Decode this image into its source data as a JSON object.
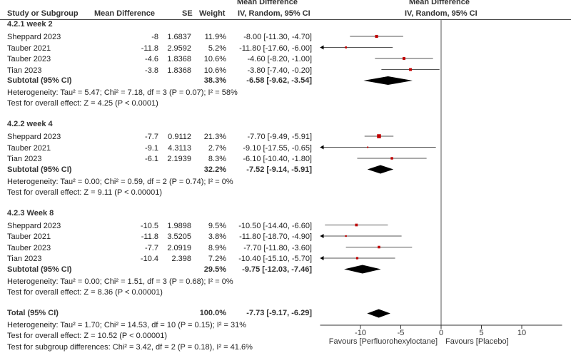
{
  "columns": {
    "study": "Study or Subgroup",
    "md": "Mean Difference",
    "se": "SE",
    "weight": "Weight",
    "ci_top": "Mean Difference",
    "ci_bottom": "IV, Random, 95% CI",
    "plot_top": "Mean Difference",
    "plot_bottom": "IV, Random, 95% CI"
  },
  "colors": {
    "marker": "#c00000",
    "diamond": "#000000",
    "ci_line": "#555555"
  },
  "subgroups": [
    {
      "label": "4.2.1 week 2",
      "studies": [
        {
          "name": "Sheppard 2023",
          "md": "-8",
          "se": "1.6837",
          "weight": "11.9%",
          "ci": "-8.00 [-11.30, -4.70]",
          "est": -8.0,
          "lo": -11.3,
          "hi": -4.7,
          "w": 11.9
        },
        {
          "name": "Tauber 2021",
          "md": "-11.8",
          "se": "2.9592",
          "weight": "5.2%",
          "ci": "-11.80 [-17.60, -6.00]",
          "est": -11.8,
          "lo": -17.6,
          "hi": -6.0,
          "w": 5.2
        },
        {
          "name": "Tauber 2023",
          "md": "-4.6",
          "se": "1.8368",
          "weight": "10.6%",
          "ci": "-4.60 [-8.20, -1.00]",
          "est": -4.6,
          "lo": -8.2,
          "hi": -1.0,
          "w": 10.6
        },
        {
          "name": "Tian 2023",
          "md": "-3.8",
          "se": "1.8368",
          "weight": "10.6%",
          "ci": "-3.80 [-7.40, -0.20]",
          "est": -3.8,
          "lo": -7.4,
          "hi": -0.2,
          "w": 10.6
        }
      ],
      "subtotal": {
        "label": "Subtotal (95% CI)",
        "weight": "38.3%",
        "ci": "-6.58 [-9.62, -3.54]",
        "est": -6.58,
        "lo": -9.62,
        "hi": -3.54
      },
      "heterogeneity": "Heterogeneity: Tau² = 5.47; Chi² = 7.18, df = 3 (P = 0.07); I² = 58%",
      "overall": "Test for overall effect: Z = 4.25 (P < 0.0001)"
    },
    {
      "label": "4.2.2 week 4",
      "studies": [
        {
          "name": "Sheppard 2023",
          "md": "-7.7",
          "se": "0.9112",
          "weight": "21.3%",
          "ci": "-7.70 [-9.49, -5.91]",
          "est": -7.7,
          "lo": -9.49,
          "hi": -5.91,
          "w": 21.3
        },
        {
          "name": "Tauber 2021",
          "md": "-9.1",
          "se": "4.3113",
          "weight": "2.7%",
          "ci": "-9.10 [-17.55, -0.65]",
          "est": -9.1,
          "lo": -17.55,
          "hi": -0.65,
          "w": 2.7
        },
        {
          "name": "Tian 2023",
          "md": "-6.1",
          "se": "2.1939",
          "weight": "8.3%",
          "ci": "-6.10 [-10.40, -1.80]",
          "est": -6.1,
          "lo": -10.4,
          "hi": -1.8,
          "w": 8.3
        }
      ],
      "subtotal": {
        "label": "Subtotal (95% CI)",
        "weight": "32.2%",
        "ci": "-7.52 [-9.14, -5.91]",
        "est": -7.52,
        "lo": -9.14,
        "hi": -5.91
      },
      "heterogeneity": "Heterogeneity: Tau² = 0.00; Chi² = 0.59, df = 2 (P = 0.74); I² = 0%",
      "overall": "Test for overall effect: Z = 9.11 (P < 0.00001)"
    },
    {
      "label": "4.2.3 Week 8",
      "studies": [
        {
          "name": "Sheppard 2023",
          "md": "-10.5",
          "se": "1.9898",
          "weight": "9.5%",
          "ci": "-10.50 [-14.40, -6.60]",
          "est": -10.5,
          "lo": -14.4,
          "hi": -6.6,
          "w": 9.5
        },
        {
          "name": "Tauber 2021",
          "md": "-11.8",
          "se": "3.5205",
          "weight": "3.8%",
          "ci": "-11.80 [-18.70, -4.90]",
          "est": -11.8,
          "lo": -18.7,
          "hi": -4.9,
          "w": 3.8
        },
        {
          "name": "Tauber 2023",
          "md": "-7.7",
          "se": "2.0919",
          "weight": "8.9%",
          "ci": "-7.70 [-11.80, -3.60]",
          "est": -7.7,
          "lo": -11.8,
          "hi": -3.6,
          "w": 8.9
        },
        {
          "name": "Tian 2023",
          "md": "-10.4",
          "se": "2.398",
          "weight": "7.2%",
          "ci": "-10.40 [-15.10, -5.70]",
          "est": -10.4,
          "lo": -15.1,
          "hi": -5.7,
          "w": 7.2
        }
      ],
      "subtotal": {
        "label": "Subtotal (95% CI)",
        "weight": "29.5%",
        "ci": "-9.75 [-12.03, -7.46]",
        "est": -9.75,
        "lo": -12.03,
        "hi": -7.46
      },
      "heterogeneity": "Heterogeneity: Tau² = 0.00; Chi² = 1.51, df = 3 (P = 0.68); I² = 0%",
      "overall": "Test for overall effect: Z = 8.36 (P < 0.00001)"
    }
  ],
  "total": {
    "label": "Total (95% CI)",
    "weight": "100.0%",
    "ci": "-7.73 [-9.17, -6.29]",
    "est": -7.73,
    "lo": -9.17,
    "hi": -6.29,
    "heterogeneity": "Heterogeneity: Tau² = 1.70; Chi² = 14.53, df = 10 (P = 0.15); I² = 31%",
    "overall": "Test for overall effect: Z = 10.52 (P < 0.00001)",
    "subgroup_diff": "Test for subgroup differences: Chi² = 3.42, df = 2 (P = 0.18), I² = 41.6%"
  },
  "chart_data": {
    "type": "forest",
    "xlim": [
      -15,
      15
    ],
    "xticks": [
      "-10",
      "-5",
      "0",
      "5",
      "10"
    ],
    "xtick_values": [
      -10,
      -5,
      0,
      5,
      10
    ],
    "favours_left": "Favours [Perfluorohexyloctane]",
    "favours_right": "Favours [Placebo]"
  }
}
